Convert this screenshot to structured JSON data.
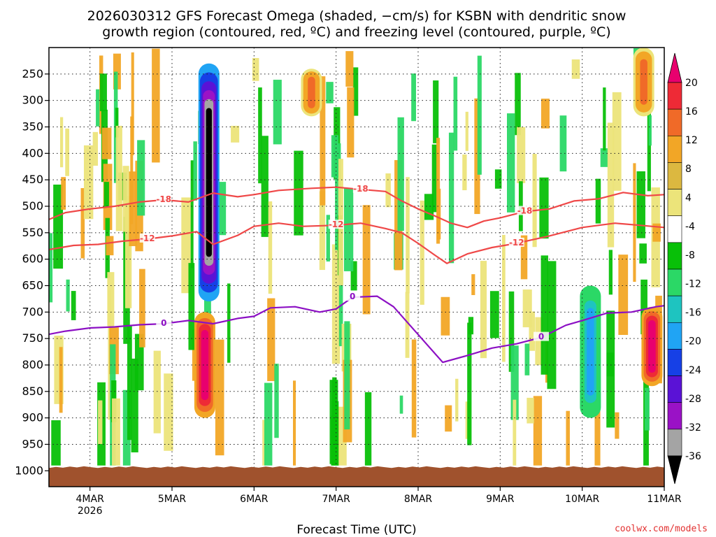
{
  "chart_data": {
    "type": "heatmap",
    "title_line1": "2026030312 GFS Forecast Omega (shaded, −cm/s) for KSBN with dendritic snow",
    "title_line2": "growth region (contoured, red, ºC) and freezing level (contoured, purple, ºC)",
    "xlabel": "Forecast Time (UTC)",
    "ylabel": "",
    "credit": "coolwx.com/models",
    "x_ticks": [
      {
        "day": 4,
        "label": "4MAR",
        "sublabel": "2026"
      },
      {
        "day": 5,
        "label": "5MAR",
        "sublabel": ""
      },
      {
        "day": 6,
        "label": "6MAR",
        "sublabel": ""
      },
      {
        "day": 7,
        "label": "7MAR",
        "sublabel": ""
      },
      {
        "day": 8,
        "label": "8MAR",
        "sublabel": ""
      },
      {
        "day": 9,
        "label": "9MAR",
        "sublabel": ""
      },
      {
        "day": 10,
        "label": "10MAR",
        "sublabel": ""
      },
      {
        "day": 11,
        "label": "11MAR",
        "sublabel": ""
      }
    ],
    "x_range_days": [
      3.5,
      11.0
    ],
    "y_ticks": [
      "250",
      "300",
      "350",
      "400",
      "450",
      "500",
      "550",
      "600",
      "650",
      "700",
      "750",
      "800",
      "850",
      "900",
      "950",
      "1000"
    ],
    "y_range_hpa": [
      200,
      1030
    ],
    "ground_level_hpa": 1000,
    "colorbar": {
      "levels": [
        "20",
        "16",
        "12",
        "8",
        "4",
        "-4",
        "-8",
        "-12",
        "-16",
        "-20",
        "-24",
        "-28",
        "-32",
        "-36"
      ],
      "colors": [
        "#e8006e",
        "#ee2a36",
        "#f06a28",
        "#f2a626",
        "#dcb840",
        "#ece47a",
        "#ffffff",
        "#08c008",
        "#2bd866",
        "#1ec4c0",
        "#20a4f4",
        "#1640e6",
        "#5a12d6",
        "#9a12c6",
        "#a4a4a4",
        "#000000"
      ]
    },
    "series": [
      {
        "name": "-18 contour (dendritic growth top)",
        "color": "#ef4848",
        "label": "-18",
        "points": [
          [
            3.5,
            525
          ],
          [
            3.7,
            512
          ],
          [
            4.0,
            505
          ],
          [
            4.3,
            500
          ],
          [
            4.6,
            492
          ],
          [
            4.9,
            488
          ],
          [
            5.2,
            492
          ],
          [
            5.5,
            475
          ],
          [
            5.8,
            482
          ],
          [
            6.0,
            478
          ],
          [
            6.3,
            470
          ],
          [
            6.7,
            466
          ],
          [
            7.0,
            464
          ],
          [
            7.3,
            468
          ],
          [
            7.6,
            472
          ],
          [
            7.8,
            490
          ],
          [
            8.0,
            505
          ],
          [
            8.2,
            518
          ],
          [
            8.4,
            532
          ],
          [
            8.6,
            540
          ],
          [
            8.8,
            528
          ],
          [
            9.0,
            522
          ],
          [
            9.3,
            510
          ],
          [
            9.6,
            505
          ],
          [
            9.9,
            490
          ],
          [
            10.2,
            486
          ],
          [
            10.5,
            474
          ],
          [
            10.8,
            480
          ],
          [
            11.0,
            478
          ]
        ]
      },
      {
        "name": "-12 contour (dendritic growth bottom)",
        "color": "#ef4848",
        "label": "-12",
        "points": [
          [
            3.5,
            582
          ],
          [
            3.8,
            574
          ],
          [
            4.1,
            572
          ],
          [
            4.4,
            566
          ],
          [
            4.7,
            562
          ],
          [
            5.0,
            556
          ],
          [
            5.3,
            548
          ],
          [
            5.5,
            572
          ],
          [
            5.8,
            555
          ],
          [
            6.0,
            538
          ],
          [
            6.3,
            532
          ],
          [
            6.6,
            538
          ],
          [
            7.0,
            536
          ],
          [
            7.3,
            532
          ],
          [
            7.6,
            542
          ],
          [
            7.8,
            550
          ],
          [
            8.0,
            570
          ],
          [
            8.2,
            592
          ],
          [
            8.35,
            608
          ],
          [
            8.6,
            590
          ],
          [
            8.9,
            578
          ],
          [
            9.2,
            570
          ],
          [
            9.6,
            556
          ],
          [
            10.0,
            540
          ],
          [
            10.4,
            532
          ],
          [
            10.7,
            536
          ],
          [
            11.0,
            540
          ]
        ]
      },
      {
        "name": "0 contour (freezing level)",
        "color": "#8c10c4",
        "label": "0",
        "points": [
          [
            3.5,
            742
          ],
          [
            3.7,
            736
          ],
          [
            4.0,
            730
          ],
          [
            4.3,
            728
          ],
          [
            4.6,
            724
          ],
          [
            4.9,
            722
          ],
          [
            5.2,
            716
          ],
          [
            5.5,
            722
          ],
          [
            5.8,
            712
          ],
          [
            6.0,
            708
          ],
          [
            6.2,
            692
          ],
          [
            6.5,
            690
          ],
          [
            6.8,
            700
          ],
          [
            7.0,
            694
          ],
          [
            7.2,
            672
          ],
          [
            7.5,
            670
          ],
          [
            7.7,
            690
          ],
          [
            7.9,
            725
          ],
          [
            8.1,
            760
          ],
          [
            8.3,
            795
          ],
          [
            8.6,
            782
          ],
          [
            8.9,
            768
          ],
          [
            9.2,
            760
          ],
          [
            9.5,
            748
          ],
          [
            9.8,
            725
          ],
          [
            10.0,
            716
          ],
          [
            10.3,
            702
          ],
          [
            10.6,
            700
          ],
          [
            10.9,
            690
          ],
          [
            11.0,
            688
          ]
        ]
      }
    ],
    "omega_regions": [
      {
        "day": 5.45,
        "p_top": 230,
        "p_bottom": 680,
        "value": -36,
        "note": "strong ascent column"
      },
      {
        "day": 5.4,
        "p_top": 700,
        "p_bottom": 900,
        "value": 20,
        "note": "strong descent"
      },
      {
        "day": 6.7,
        "p_top": 240,
        "p_bottom": 330,
        "value": 12
      },
      {
        "day": 10.1,
        "p_top": 650,
        "p_bottom": 900,
        "value": -16
      },
      {
        "day": 10.75,
        "p_top": 200,
        "p_bottom": 330,
        "value": 12
      },
      {
        "day": 10.85,
        "p_top": 690,
        "p_bottom": 840,
        "value": 20
      }
    ]
  }
}
